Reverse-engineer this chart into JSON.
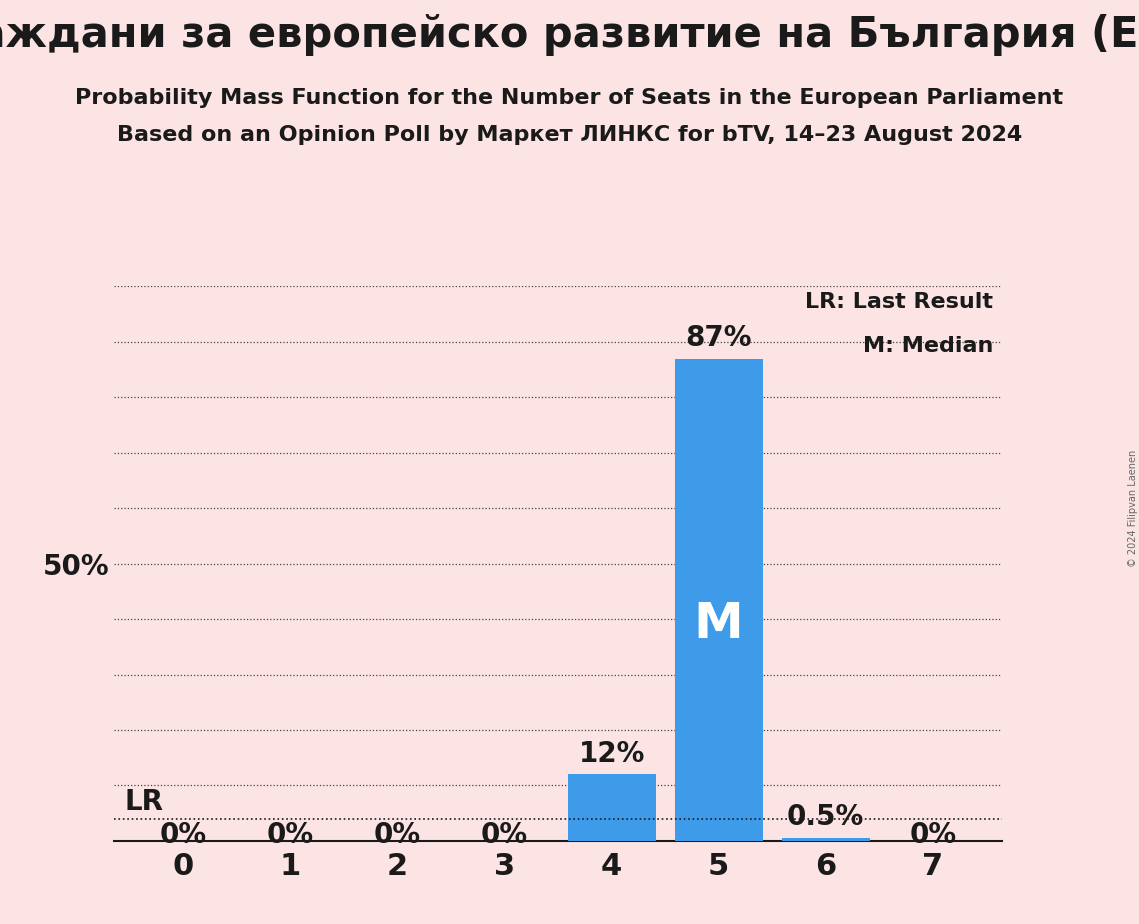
{
  "title": "Граждани за европейско развитие на България (ЕРР)",
  "subtitle1": "Probability Mass Function for the Number of Seats in the European Parliament",
  "subtitle2": "Based on an Opinion Poll by Маркет ЛИНКС for bTV, 14–23 August 2024",
  "copyright": "© 2024 Filipvan Laenen",
  "seats": [
    0,
    1,
    2,
    3,
    4,
    5,
    6,
    7
  ],
  "probabilities": [
    0.0,
    0.0,
    0.0,
    0.0,
    0.12,
    0.87,
    0.005,
    0.0
  ],
  "bar_labels": [
    "0%",
    "0%",
    "0%",
    "0%",
    "12%",
    "87%",
    "0.5%",
    "0%"
  ],
  "bar_color": "#3d9be9",
  "median_seat": 5,
  "lr_seat": 4,
  "lr_label": "LR",
  "median_label": "M",
  "legend_lr": "LR: Last Result",
  "legend_m": "M: Median",
  "background_color": "#fce4e4",
  "text_color": "#1a1a1a",
  "bar_label_color_inside": "#ffffff",
  "ylim_max": 1.0,
  "yticks": [
    0.0,
    0.1,
    0.2,
    0.3,
    0.4,
    0.5,
    0.6,
    0.7,
    0.8,
    0.9,
    1.0
  ],
  "lr_line_prob": 0.04,
  "title_fontsize": 30,
  "subtitle_fontsize": 16,
  "axis_tick_fontsize": 22,
  "bar_label_fontsize": 20,
  "median_label_fontsize": 36,
  "ytick_label_fontsize": 20,
  "legend_fontsize": 16
}
